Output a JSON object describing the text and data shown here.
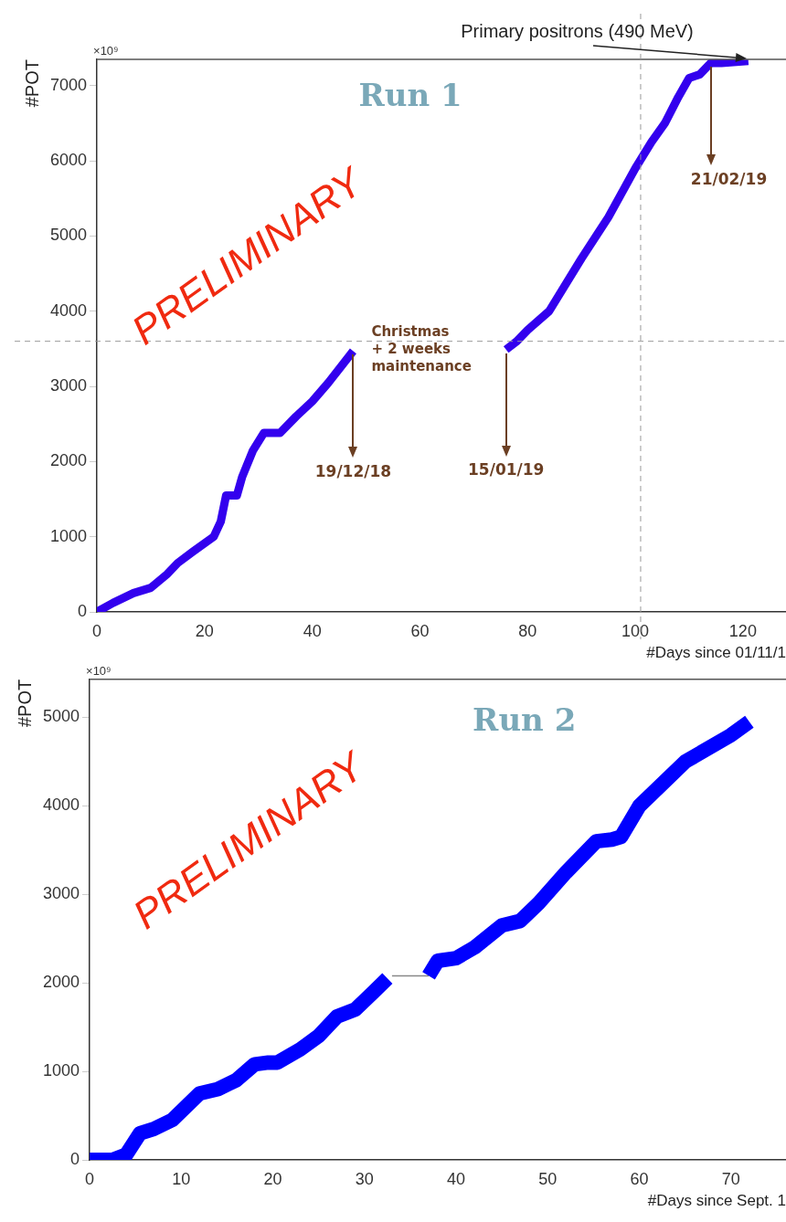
{
  "chart_data": [
    {
      "type": "line",
      "ylabel": "#POT",
      "xlabel": "#Days since 01/11/1",
      "xlim": [
        0,
        128
      ],
      "ylim": [
        0,
        7350
      ],
      "xticks": [
        0,
        20,
        40,
        60,
        80,
        100,
        120
      ],
      "yticks": [
        0,
        1000,
        2000,
        3000,
        4000,
        5000,
        6000,
        7000
      ],
      "grid": false,
      "legend": false,
      "series": [
        {
          "color": "#3300ee",
          "x": [
            0,
            3,
            6.8,
            10,
            13,
            15,
            17.8,
            21.7,
            23,
            24,
            26,
            27,
            29,
            31,
            34,
            37,
            40,
            43,
            47.6,
            60,
            76,
            78,
            80,
            84,
            90,
            95,
            100,
            103,
            105.5,
            108,
            110,
            112,
            114,
            116,
            121
          ],
          "values": [
            0,
            120,
            250,
            320,
            500,
            650,
            800,
            1000,
            1200,
            1550,
            1550,
            1800,
            2150,
            2380,
            2380,
            2600,
            2800,
            3050,
            3470,
            null,
            3490,
            3600,
            3750,
            4000,
            4700,
            5250,
            5900,
            6250,
            6500,
            6850,
            7100,
            7150,
            7300,
            7300,
            7330
          ]
        }
      ],
      "ref_lines": [
        {
          "axis": "x",
          "value": 101,
          "color": "#999999",
          "line_style": "dashed"
        },
        {
          "axis": "y",
          "value": 3600,
          "color": "#999999",
          "line_style": "dashed"
        }
      ],
      "annotations": [
        "×10⁹",
        "Run 1",
        "PRELIMINARY",
        "Primary positrons (490 MeV)",
        {
          "text": "Christmas\n+ 2 weeks\nmaintenance",
          "x": 47.6,
          "y": 3470
        },
        {
          "text": "19/12/18",
          "x": 47.6,
          "y": 3470
        },
        {
          "text": "15/01/19",
          "x": 76,
          "y": 3490
        },
        {
          "text": "21/02/19",
          "x": 114,
          "y": 7300
        }
      ]
    },
    {
      "type": "line",
      "ylabel": "#POT",
      "xlabel": "#Days since Sept. 1",
      "xlim": [
        0,
        76
      ],
      "ylim": [
        0,
        5430
      ],
      "xticks": [
        0,
        10,
        20,
        30,
        40,
        50,
        60,
        70
      ],
      "yticks": [
        0,
        1000,
        2000,
        3000,
        4000,
        5000
      ],
      "grid": false,
      "legend": false,
      "series": [
        {
          "color": "#0000ff",
          "x": [
            0,
            2.5,
            4,
            5.5,
            7,
            9,
            12,
            14,
            16,
            18,
            19.5,
            20.5,
            23,
            25,
            27,
            29,
            31,
            32.5,
            35,
            37,
            38,
            40,
            42,
            45,
            47,
            49,
            52,
            55.3,
            57,
            58,
            60,
            65,
            70,
            72
          ],
          "values": [
            0,
            0,
            60,
            300,
            350,
            450,
            750,
            800,
            900,
            1080,
            1100,
            1100,
            1250,
            1400,
            1620,
            1700,
            1900,
            2050,
            null,
            2080,
            2250,
            2280,
            2400,
            2650,
            2700,
            2900,
            3250,
            3600,
            3620,
            3650,
            4000,
            4500,
            4800,
            4950
          ]
        },
        {
          "color": "#888888",
          "x": [
            33,
            37
          ],
          "values": [
            2080,
            2080
          ]
        }
      ],
      "annotations": [
        "×10⁹",
        "Run 2",
        "PRELIMINARY"
      ]
    }
  ]
}
